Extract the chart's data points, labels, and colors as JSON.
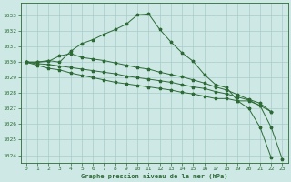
{
  "xlabel": "Graphe pression niveau de la mer (hPa)",
  "ylim": [
    1023.5,
    1033.8
  ],
  "xlim": [
    -0.5,
    23.5
  ],
  "yticks": [
    1024,
    1025,
    1026,
    1027,
    1028,
    1029,
    1030,
    1031,
    1032,
    1033
  ],
  "xticks": [
    0,
    1,
    2,
    3,
    4,
    5,
    6,
    7,
    8,
    9,
    10,
    11,
    12,
    13,
    14,
    15,
    16,
    17,
    18,
    19,
    20,
    21,
    22,
    23
  ],
  "bg_color": "#cde8e5",
  "grid_color": "#a8ccc8",
  "line_color": "#2d6a35",
  "series": [
    [
      1030.0,
      1030.0,
      1030.1,
      1030.0,
      1030.7,
      1031.2,
      1031.45,
      1031.8,
      1032.1,
      1032.45,
      1033.05,
      1033.1,
      1032.1,
      1031.3,
      1030.6,
      1030.05,
      1029.2,
      1028.55,
      1028.35,
      1027.5,
      1027.0,
      1025.8,
      1023.85,
      null
    ],
    [
      1030.0,
      1030.0,
      1030.05,
      1030.4,
      1030.55,
      1030.3,
      1030.2,
      1030.1,
      1029.95,
      1029.8,
      1029.65,
      1029.55,
      1029.35,
      1029.2,
      1029.05,
      1028.85,
      1028.65,
      1028.4,
      1028.2,
      1027.9,
      1027.6,
      1027.35,
      1026.8,
      null
    ],
    [
      1030.0,
      1029.9,
      1029.85,
      1029.75,
      1029.65,
      1029.55,
      1029.45,
      1029.35,
      1029.25,
      1029.1,
      1029.0,
      1028.9,
      1028.8,
      1028.7,
      1028.55,
      1028.4,
      1028.3,
      1028.1,
      1027.95,
      1027.75,
      1027.55,
      1027.2,
      1026.8,
      null
    ],
    [
      1030.0,
      1029.8,
      1029.6,
      1029.5,
      1029.3,
      1029.15,
      1029.0,
      1028.85,
      1028.7,
      1028.6,
      1028.5,
      1028.4,
      1028.3,
      1028.2,
      1028.05,
      1027.95,
      1027.8,
      1027.65,
      1027.65,
      1027.5,
      1027.5,
      1027.2,
      1025.8,
      1023.75
    ]
  ]
}
